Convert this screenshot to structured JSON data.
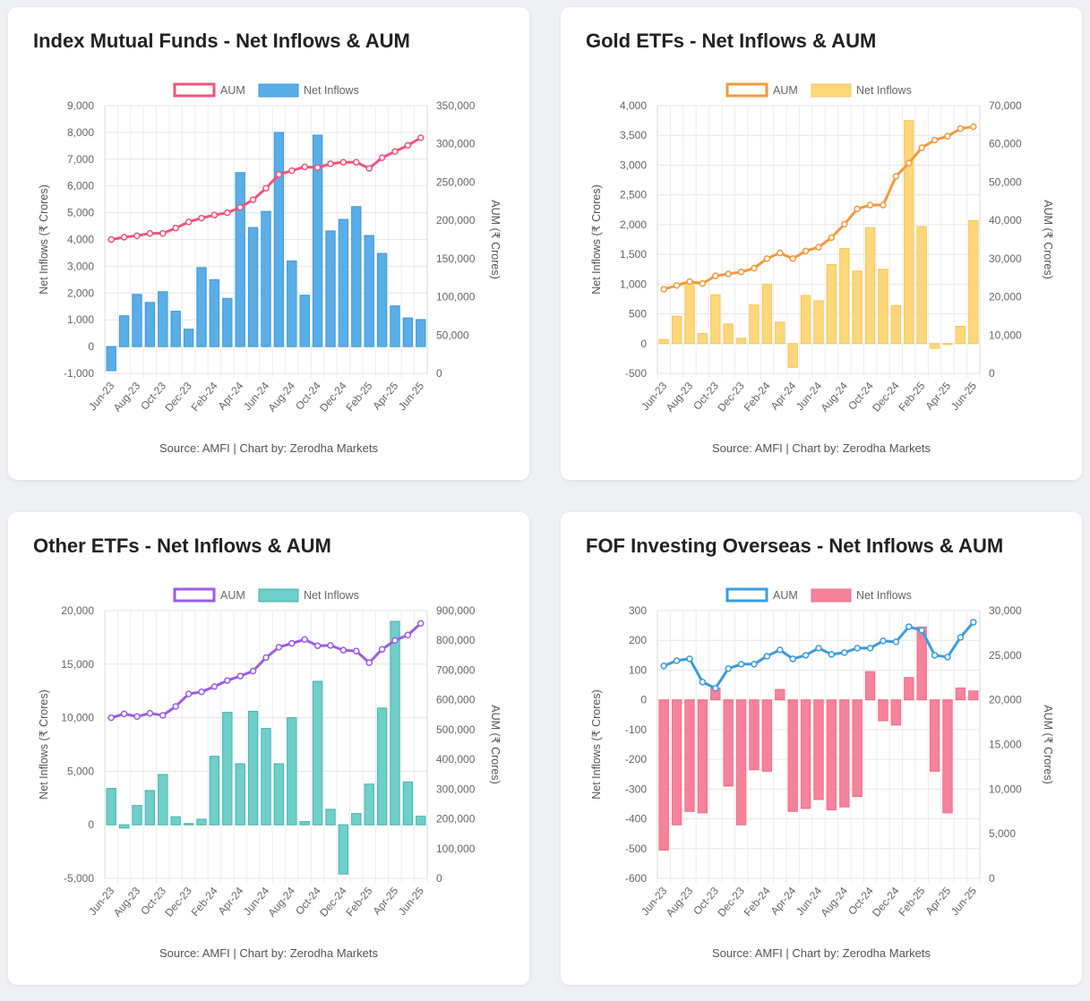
{
  "chart_data": [
    {
      "type": "bar",
      "title": "Index Mutual Funds - Net Inflows & AUM",
      "source": "Source: AMFI | Chart by: Zerodha Markets",
      "categories": [
        "Jun-23",
        "Jul-23",
        "Aug-23",
        "Sep-23",
        "Oct-23",
        "Nov-23",
        "Dec-23",
        "Jan-24",
        "Feb-24",
        "Mar-24",
        "Apr-24",
        "May-24",
        "Jun-24",
        "Jul-24",
        "Aug-24",
        "Sep-24",
        "Oct-24",
        "Nov-24",
        "Dec-24",
        "Jan-25",
        "Feb-25",
        "Mar-25",
        "Apr-25",
        "May-25",
        "Jun-25"
      ],
      "tick_labels": [
        "Jun-23",
        "Aug-23",
        "Oct-23",
        "Dec-23",
        "Feb-24",
        "Apr-24",
        "Jun-24",
        "Aug-24",
        "Oct-24",
        "Dec-24",
        "Feb-25",
        "Apr-25",
        "Jun-25"
      ],
      "legend": [
        "AUM",
        "Net Inflows"
      ],
      "ylabel": "Net Inflows (₹ Crores)",
      "y2label": "AUM (₹ Crores)",
      "ylim": [
        -1000,
        9000
      ],
      "y_ticks": [
        "9,000",
        "8,000",
        "7,000",
        "6,000",
        "5,000",
        "4,000",
        "3,000",
        "2,000",
        "1,000",
        "0",
        "-1,000"
      ],
      "y2lim": [
        0,
        350000
      ],
      "y2_ticks": [
        "350,000",
        "300,000",
        "250,000",
        "200,000",
        "150,000",
        "100,000",
        "50,000",
        "0"
      ],
      "series": [
        {
          "name": "Net Inflows",
          "type": "bar",
          "color": "#5aaee8",
          "border": "#3f97d6",
          "values": [
            -900,
            1150,
            1950,
            1650,
            2050,
            1320,
            650,
            2950,
            2500,
            1800,
            6500,
            4450,
            5050,
            8000,
            3200,
            1920,
            7900,
            4320,
            4750,
            5230,
            4150,
            3480,
            1520,
            1070,
            1010
          ]
        },
        {
          "name": "AUM",
          "type": "line",
          "color": "#f0557a",
          "values": [
            175000,
            178000,
            180000,
            183000,
            183000,
            190000,
            198000,
            203000,
            207000,
            210000,
            217000,
            227000,
            242000,
            260000,
            265000,
            270000,
            269000,
            274000,
            276000,
            276000,
            268000,
            282000,
            290000,
            298000,
            308000
          ]
        }
      ]
    },
    {
      "type": "bar",
      "title": "Gold ETFs - Net Inflows & AUM",
      "source": "Source: AMFI | Chart by: Zerodha Markets",
      "categories": [
        "Jun-23",
        "Jul-23",
        "Aug-23",
        "Sep-23",
        "Oct-23",
        "Nov-23",
        "Dec-23",
        "Jan-24",
        "Feb-24",
        "Mar-24",
        "Apr-24",
        "May-24",
        "Jun-24",
        "Jul-24",
        "Aug-24",
        "Sep-24",
        "Oct-24",
        "Nov-24",
        "Dec-24",
        "Jan-25",
        "Feb-25",
        "Mar-25",
        "Apr-25",
        "May-25",
        "Jun-25"
      ],
      "tick_labels": [
        "Jun-23",
        "Aug-23",
        "Oct-23",
        "Dec-23",
        "Feb-24",
        "Apr-24",
        "Jun-24",
        "Aug-24",
        "Oct-24",
        "Dec-24",
        "Feb-25",
        "Apr-25",
        "Jun-25"
      ],
      "legend": [
        "AUM",
        "Net Inflows"
      ],
      "ylabel": "Net Inflows (₹ Crores)",
      "y2label": "AUM (₹ Crores)",
      "ylim": [
        -500,
        4000
      ],
      "y_ticks": [
        "4,000",
        "3,500",
        "3,000",
        "2,500",
        "2,000",
        "1,500",
        "1,000",
        "500",
        "0",
        "-500"
      ],
      "y2lim": [
        0,
        70000
      ],
      "y2_ticks": [
        "70,000",
        "60,000",
        "50,000",
        "40,000",
        "30,000",
        "20,000",
        "10,000",
        "0"
      ],
      "series": [
        {
          "name": "Net Inflows",
          "type": "bar",
          "color": "#fdd77a",
          "border": "#f2c75a",
          "values": [
            70,
            460,
            1030,
            170,
            820,
            330,
            90,
            650,
            1000,
            360,
            -400,
            810,
            720,
            1330,
            1600,
            1220,
            1950,
            1250,
            640,
            3750,
            1970,
            -80,
            0,
            290,
            2070
          ]
        },
        {
          "name": "AUM",
          "type": "line",
          "color": "#f59a3c",
          "values": [
            22000,
            23000,
            24000,
            23500,
            25500,
            26000,
            26500,
            27500,
            30000,
            31500,
            30000,
            32000,
            33000,
            35500,
            39000,
            43000,
            44000,
            44000,
            51500,
            55000,
            59000,
            61000,
            62000,
            64000,
            64500
          ]
        }
      ]
    },
    {
      "type": "bar",
      "title": "Other ETFs - Net Inflows & AUM",
      "source": "Source: AMFI | Chart by: Zerodha Markets",
      "categories": [
        "Jun-23",
        "Jul-23",
        "Aug-23",
        "Sep-23",
        "Oct-23",
        "Nov-23",
        "Dec-23",
        "Jan-24",
        "Feb-24",
        "Mar-24",
        "Apr-24",
        "May-24",
        "Jun-24",
        "Jul-24",
        "Aug-24",
        "Sep-24",
        "Oct-24",
        "Nov-24",
        "Dec-24",
        "Jan-25",
        "Feb-25",
        "Mar-25",
        "Apr-25",
        "May-25",
        "Jun-25"
      ],
      "tick_labels": [
        "Jun-23",
        "Aug-23",
        "Oct-23",
        "Dec-23",
        "Feb-24",
        "Apr-24",
        "Jun-24",
        "Aug-24",
        "Oct-24",
        "Dec-24",
        "Feb-25",
        "Apr-25",
        "Jun-25"
      ],
      "legend": [
        "AUM",
        "Net Inflows"
      ],
      "ylabel": "Net Inflows (₹ Crores)",
      "y2label": "AUM (₹ Crores)",
      "ylim": [
        -5000,
        20000
      ],
      "y_ticks": [
        "20,000",
        "15,000",
        "10,000",
        "5,000",
        "0",
        "-5,000"
      ],
      "y2lim": [
        0,
        900000
      ],
      "y2_ticks": [
        "900,000",
        "800,000",
        "700,000",
        "600,000",
        "500,000",
        "400,000",
        "300,000",
        "200,000",
        "100,000",
        "0"
      ],
      "series": [
        {
          "name": "Net Inflows",
          "type": "bar",
          "color": "#6fcfca",
          "border": "#45b3ad",
          "values": [
            3400,
            -300,
            1800,
            3200,
            4700,
            750,
            120,
            520,
            6400,
            10500,
            5700,
            10600,
            9000,
            5700,
            10000,
            300,
            13400,
            1450,
            -4600,
            1050,
            3800,
            10900,
            19000,
            4000,
            800
          ]
        },
        {
          "name": "AUM",
          "type": "line",
          "color": "#9b5de5",
          "values": [
            540000,
            553000,
            544000,
            555000,
            548000,
            578000,
            620000,
            627000,
            645000,
            665000,
            680000,
            697000,
            742000,
            777000,
            790000,
            803000,
            782000,
            783000,
            767000,
            764000,
            725000,
            770000,
            800000,
            818000,
            857000
          ]
        }
      ]
    },
    {
      "type": "bar",
      "title": "FOF Investing Overseas - Net Inflows & AUM",
      "source": "Source: AMFI | Chart by: Zerodha Markets",
      "categories": [
        "Jun-23",
        "Jul-23",
        "Aug-23",
        "Sep-23",
        "Oct-23",
        "Nov-23",
        "Dec-23",
        "Jan-24",
        "Feb-24",
        "Mar-24",
        "Apr-24",
        "May-24",
        "Jun-24",
        "Jul-24",
        "Aug-24",
        "Sep-24",
        "Oct-24",
        "Nov-24",
        "Dec-24",
        "Jan-25",
        "Feb-25",
        "Mar-25",
        "Apr-25",
        "May-25",
        "Jun-25"
      ],
      "tick_labels": [
        "Jun-23",
        "Aug-23",
        "Oct-23",
        "Dec-23",
        "Feb-24",
        "Apr-24",
        "Jun-24",
        "Aug-24",
        "Oct-24",
        "Dec-24",
        "Feb-25",
        "Apr-25",
        "Jun-25"
      ],
      "legend": [
        "AUM",
        "Net Inflows"
      ],
      "ylabel": "Net Inflows (₹ Crores)",
      "y2label": "AUM (₹ Crores)",
      "ylim": [
        -600,
        300
      ],
      "y_ticks": [
        "300",
        "200",
        "100",
        "0",
        "-100",
        "-200",
        "-300",
        "-400",
        "-500",
        "-600"
      ],
      "y2lim": [
        0,
        30000
      ],
      "y2_ticks": [
        "30,000",
        "25,000",
        "20,000",
        "15,000",
        "10,000",
        "5,000",
        "0"
      ],
      "series": [
        {
          "name": "Net Inflows",
          "type": "bar",
          "color": "#f7839b",
          "border": "#ee6d88",
          "values": [
            -505,
            -420,
            -375,
            -380,
            40,
            -290,
            -420,
            -235,
            -240,
            35,
            -375,
            -365,
            -335,
            -370,
            -360,
            -325,
            95,
            -70,
            -85,
            75,
            245,
            -240,
            -380,
            40,
            30
          ]
        },
        {
          "name": "AUM",
          "type": "line",
          "color": "#3a9de0",
          "values": [
            23800,
            24400,
            24600,
            22000,
            21300,
            23500,
            24000,
            24000,
            24900,
            25600,
            24600,
            25000,
            25800,
            25100,
            25300,
            25800,
            25800,
            26600,
            26500,
            28200,
            27800,
            25000,
            24800,
            27000,
            28700
          ]
        }
      ]
    }
  ]
}
